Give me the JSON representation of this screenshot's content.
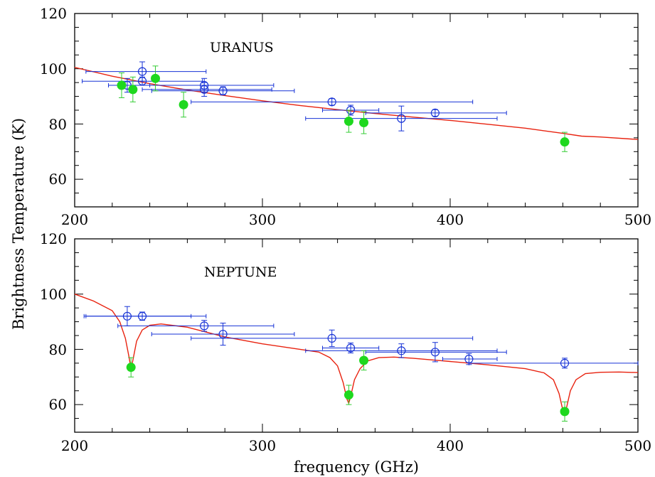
{
  "chart_data": [
    {
      "type": "scatter",
      "title": "URANUS",
      "xlabel": "frequency (GHz)",
      "ylabel": "Brightness Temperature (K)",
      "xlim": [
        200,
        500
      ],
      "ylim": [
        50,
        120
      ],
      "x_ticks": [
        "200",
        "300",
        "400",
        "500"
      ],
      "y_ticks": [
        "60",
        "80",
        "100",
        "120"
      ],
      "grid": false,
      "colors": {
        "model": "#e8220f",
        "open": "#1632d6",
        "filled": "#1ed81e",
        "filled_err": "#33cc33"
      },
      "model_curve": {
        "x": [
          200,
          220,
          240,
          260,
          280,
          300,
          320,
          340,
          360,
          380,
          400,
          420,
          440,
          460,
          470,
          480,
          500
        ],
        "y": [
          100.5,
          97.3,
          94.6,
          92.3,
          90.3,
          88.4,
          86.7,
          85.2,
          83.8,
          82.5,
          81.3,
          79.9,
          78.5,
          76.6,
          75.6,
          75.3,
          74.4
        ]
      },
      "series": [
        {
          "marker": "open circle",
          "points": [
            {
              "x": 236,
              "y": 99,
              "yerr": 3.5,
              "xlo": 206,
              "xhi": 270
            },
            {
              "x": 236,
              "y": 95.5,
              "yerr": 1.5,
              "xlo": 204,
              "xhi": 268
            },
            {
              "x": 228,
              "y": 94,
              "yerr": 2.5,
              "xlo": 218,
              "xhi": 240
            },
            {
              "x": 269,
              "y": 94,
              "yerr": 2.5,
              "xlo": 223,
              "xhi": 306
            },
            {
              "x": 269,
              "y": 92.5,
              "yerr": 2.5,
              "xlo": 236,
              "xhi": 305
            },
            {
              "x": 279,
              "y": 92,
              "yerr": 1.5,
              "xlo": 241,
              "xhi": 317
            },
            {
              "x": 337,
              "y": 88,
              "yerr": 1.2,
              "xlo": 262,
              "xhi": 412
            },
            {
              "x": 347,
              "y": 85,
              "yerr": 1.8,
              "xlo": 332,
              "xhi": 362
            },
            {
              "x": 374,
              "y": 82,
              "yerr": 4.5,
              "xlo": 323,
              "xhi": 425
            },
            {
              "x": 392,
              "y": 84,
              "yerr": 1.2,
              "xlo": 355,
              "xhi": 430
            }
          ]
        },
        {
          "marker": "filled circle",
          "points": [
            {
              "x": 225,
              "y": 94,
              "yerr": 4.5
            },
            {
              "x": 231,
              "y": 92.5,
              "yerr": 4.5
            },
            {
              "x": 243,
              "y": 96.5,
              "yerr": 4.5
            },
            {
              "x": 258,
              "y": 87,
              "yerr": 4.5
            },
            {
              "x": 346,
              "y": 81,
              "yerr": 4
            },
            {
              "x": 354,
              "y": 80.5,
              "yerr": 4
            },
            {
              "x": 461,
              "y": 73.5,
              "yerr": 3.5
            }
          ]
        }
      ]
    },
    {
      "type": "scatter",
      "title": "NEPTUNE",
      "xlabel": "frequency (GHz)",
      "ylabel": "Brightness Temperature (K)",
      "xlim": [
        200,
        500
      ],
      "ylim": [
        50,
        120
      ],
      "x_ticks": [
        "200",
        "300",
        "400",
        "500"
      ],
      "y_ticks": [
        "60",
        "80",
        "100",
        "120"
      ],
      "grid": false,
      "colors": {
        "model": "#e8220f",
        "open": "#1632d6",
        "filled": "#1ed81e",
        "filled_err": "#33cc33"
      },
      "model_curve": {
        "x": [
          200,
          210,
          220,
          224,
          227,
          229,
          230,
          231,
          233,
          236,
          240,
          246,
          260,
          280,
          300,
          320,
          330,
          336,
          340,
          343,
          345,
          346,
          347,
          349,
          352,
          356,
          362,
          370,
          380,
          400,
          420,
          440,
          450,
          455,
          458,
          460,
          461,
          462,
          464,
          467,
          472,
          480,
          490,
          500
        ],
        "y": [
          100,
          97.5,
          94,
          90,
          84,
          77,
          73,
          76,
          83,
          87,
          88.7,
          89.2,
          88,
          84.5,
          82,
          80,
          79,
          77,
          74,
          68,
          62,
          60.5,
          63,
          69,
          73,
          75.8,
          77,
          77.2,
          76.8,
          75.6,
          74.4,
          73,
          71.5,
          69,
          64,
          58,
          56.5,
          59,
          65,
          69,
          71.2,
          71.7,
          71.8,
          71.6
        ]
      },
      "series": [
        {
          "marker": "open circle",
          "points": [
            {
              "x": 228,
              "y": 92,
              "yerr": 3.5,
              "xlo": 206,
              "xhi": 262
            },
            {
              "x": 236,
              "y": 92,
              "yerr": 1.5,
              "xlo": 205,
              "xhi": 270
            },
            {
              "x": 269,
              "y": 88.5,
              "yerr": 2,
              "xlo": 223,
              "xhi": 306
            },
            {
              "x": 279,
              "y": 85.5,
              "yerr": 4,
              "xlo": 241,
              "xhi": 317
            },
            {
              "x": 337,
              "y": 84,
              "yerr": 3,
              "xlo": 262,
              "xhi": 412
            },
            {
              "x": 347,
              "y": 80.5,
              "yerr": 1.8,
              "xlo": 332,
              "xhi": 362
            },
            {
              "x": 374,
              "y": 79.5,
              "yerr": 2.5,
              "xlo": 323,
              "xhi": 425
            },
            {
              "x": 392,
              "y": 79,
              "yerr": 3.5,
              "xlo": 355,
              "xhi": 430
            },
            {
              "x": 410,
              "y": 76.5,
              "yerr": 2,
              "xlo": 396,
              "xhi": 425
            },
            {
              "x": 461,
              "y": 75,
              "yerr": 1.8,
              "xlo": 410,
              "xhi": 500
            }
          ]
        },
        {
          "marker": "filled circle",
          "points": [
            {
              "x": 230,
              "y": 73.5,
              "yerr": 3.5
            },
            {
              "x": 346,
              "y": 63.5,
              "yerr": 3.5
            },
            {
              "x": 354,
              "y": 76,
              "yerr": 3.5
            },
            {
              "x": 461,
              "y": 57.5,
              "yerr": 3.5
            }
          ]
        }
      ]
    }
  ]
}
